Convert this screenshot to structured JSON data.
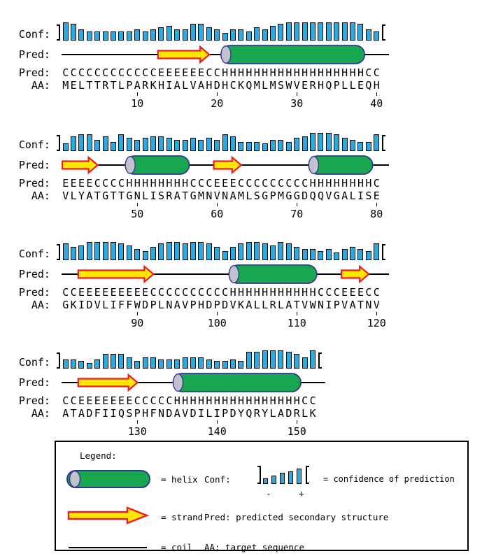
{
  "palette": {
    "bar_fill": "#29ABE2",
    "helix_fill": "#18A750",
    "helix_border": "#2E3B8F",
    "helix_cap": "#C2C2CE",
    "strand_fill": "#FFE800",
    "strand_border": "#EC1C24",
    "coil_color": "#000000"
  },
  "labels": {
    "conf": "Conf: ",
    "pred": "Pred: ",
    "aa": "AA: "
  },
  "blocks": [
    {
      "start": 1,
      "conf": [
        9,
        8,
        5,
        4,
        4,
        4,
        4,
        4,
        4,
        5,
        4,
        5,
        6,
        7,
        5,
        5,
        8,
        8,
        6,
        5,
        3,
        5,
        5,
        4,
        6,
        5,
        7,
        8,
        9,
        9,
        9,
        9,
        9,
        9,
        9,
        9,
        9,
        8,
        5,
        4
      ],
      "pred": "CCCCCCCCCCCCEEEEEECCHHHHHHHHHHHHHHHHHHCC",
      "aa": "MELTTRTLPARKHIALVAHDHCKQMLMSWVERHQPLLEQH",
      "ticks": [
        10,
        20,
        30,
        40
      ]
    },
    {
      "start": 41,
      "conf": [
        3,
        7,
        8,
        8,
        5,
        7,
        4,
        8,
        6,
        5,
        6,
        7,
        7,
        6,
        5,
        5,
        6,
        5,
        6,
        5,
        8,
        7,
        4,
        4,
        4,
        3,
        5,
        5,
        4,
        6,
        7,
        9,
        9,
        9,
        8,
        6,
        5,
        4,
        4,
        8
      ],
      "pred": "EEEECCCCHHHHHHHHCCCEEECCCCCCCCCHHHHHHHHC",
      "aa": "VLYATGTTGNLISRATGMNVNAMLSGPMGGDQQVGALISE",
      "ticks": [
        50,
        60,
        70,
        80
      ]
    },
    {
      "start": 81,
      "conf": [
        8,
        6,
        7,
        9,
        9,
        9,
        9,
        8,
        7,
        5,
        4,
        6,
        8,
        9,
        9,
        8,
        9,
        9,
        8,
        6,
        4,
        6,
        8,
        9,
        9,
        8,
        7,
        9,
        8,
        6,
        5,
        5,
        4,
        5,
        3,
        5,
        6,
        5,
        4,
        8
      ],
      "pred": "CCEEEEEEEEECCCCCCCCCCHHHHHHHHHHHCCCEEECC",
      "aa": "GKIDVLIFFWDPLNAVPHDPDVKALLRLATVWNIPVATNV",
      "ticks": [
        90,
        100,
        110,
        120
      ]
    },
    {
      "start": 121,
      "conf": [
        4,
        4,
        3,
        2,
        4,
        7,
        7,
        7,
        5,
        3,
        5,
        5,
        4,
        4,
        4,
        5,
        5,
        5,
        4,
        3,
        3,
        4,
        3,
        8,
        8,
        9,
        9,
        9,
        8,
        7,
        5,
        9
      ],
      "pred": "CCEEEEEEECCCCCHHHHHHHHHHHHHHHHCC",
      "aa": "ATADFIIQSPHFNDAVDILIPDYQRYLADRLK",
      "ticks": [
        130,
        140,
        150
      ]
    }
  ],
  "legend": {
    "title": "Legend:",
    "helix_label": "= helix",
    "strand_label": "= strand",
    "coil_label": "= coil",
    "conf_label": "Conf:",
    "conf_desc": "= confidence of prediction",
    "pred_desc": "Pred: predicted secondary structure",
    "aa_desc": "AA: target sequence",
    "minus": "-",
    "plus": "+",
    "mini_bars": [
      2,
      4,
      6,
      7,
      9
    ]
  }
}
